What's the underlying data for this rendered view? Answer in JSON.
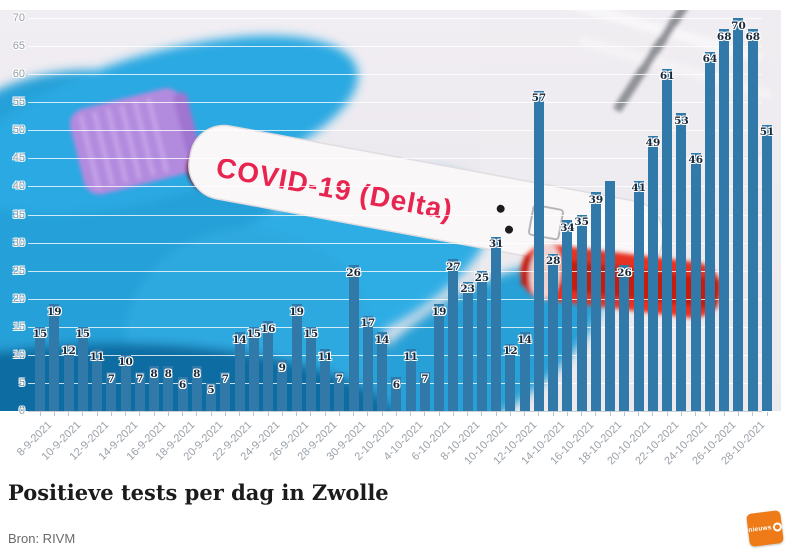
{
  "chart_data": {
    "type": "bar",
    "title": "Positieve tests per dag in Zwolle",
    "source": "Bron: RIVM",
    "xlabel": "",
    "ylabel": "",
    "ylim": [
      0,
      70
    ],
    "ytick_step": 5,
    "grid": "horizontal-white-lines-over-photo",
    "legend": "none",
    "bar_color": "#3079a8",
    "y_tick_labels": [
      "0",
      "5",
      "10",
      "15",
      "20",
      "25",
      "30",
      "35",
      "40",
      "45",
      "50",
      "55",
      "60",
      "65",
      "70"
    ],
    "x_tick_labels": [
      "8-9-2021",
      "10-9-2021",
      "12-9-2021",
      "14-9-2021",
      "16-9-2021",
      "18-9-2021",
      "20-9-2021",
      "22-9-2021",
      "24-9-2021",
      "26-9-2021",
      "28-9-2021",
      "30-9-2021",
      "2-10-2021",
      "4-10-2021",
      "6-10-2021",
      "8-10-2021",
      "10-10-2021",
      "12-10-2021",
      "14-10-2021",
      "16-10-2021",
      "18-10-2021",
      "20-10-2021",
      "22-10-2021",
      "24-10-2021",
      "26-10-2021",
      "28-10-2021"
    ],
    "x_tick_every_n_bars": 2,
    "values": [
      15,
      19,
      12,
      15,
      11,
      7,
      10,
      7,
      8,
      8,
      6,
      8,
      5,
      7,
      14,
      15,
      16,
      9,
      19,
      15,
      11,
      7,
      26,
      17,
      14,
      6,
      11,
      7,
      19,
      27,
      23,
      25,
      31,
      12,
      14,
      57,
      28,
      34,
      35,
      39,
      41,
      26,
      41,
      49,
      61,
      53,
      46,
      64,
      68,
      70,
      68,
      51
    ],
    "value_labels": [
      "15",
      "19",
      "12",
      "15",
      "11",
      "7",
      "10",
      "7",
      "8",
      "8",
      "6",
      "8",
      "5",
      "7",
      "14",
      "15",
      "16",
      "9",
      "19",
      "15",
      "11",
      "7",
      "26",
      "17",
      "14",
      "6",
      "11",
      "7",
      "19",
      "27",
      "23",
      "25",
      "31",
      "12",
      "14",
      "57",
      "28",
      "34",
      "35",
      "39",
      "",
      "26",
      "41",
      "49",
      "61",
      "53",
      "46",
      "64",
      "68",
      "70",
      "68",
      "51"
    ],
    "hidden_label_bar_index": 40,
    "hidden_label_estimated_value": 41
  },
  "photo": {
    "covid_text": "COVID-19 (Delta)"
  },
  "logo": {
    "text": "nieuws",
    "color": "#ee7b17"
  }
}
